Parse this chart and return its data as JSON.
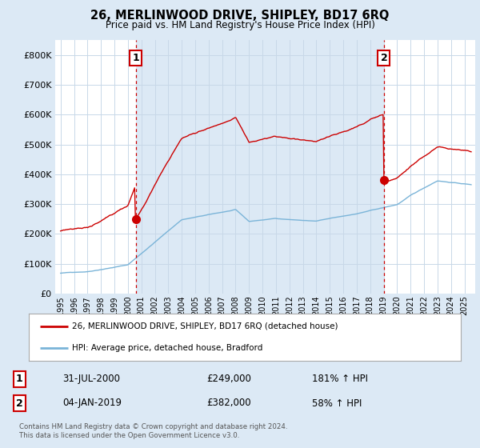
{
  "title": "26, MERLINWOOD DRIVE, SHIPLEY, BD17 6RQ",
  "subtitle": "Price paid vs. HM Land Registry's House Price Index (HPI)",
  "legend_line1": "26, MERLINWOOD DRIVE, SHIPLEY, BD17 6RQ (detached house)",
  "legend_line2": "HPI: Average price, detached house, Bradford",
  "sale1_date": "31-JUL-2000",
  "sale1_price": 249000,
  "sale1_hpi": "181% ↑ HPI",
  "sale2_date": "04-JAN-2019",
  "sale2_price": 382000,
  "sale2_hpi": "58% ↑ HPI",
  "footnote": "Contains HM Land Registry data © Crown copyright and database right 2024.\nThis data is licensed under the Open Government Licence v3.0.",
  "hpi_color": "#7ab4d8",
  "price_color": "#cc0000",
  "vline_color": "#cc0000",
  "bg_color": "#dce9f5",
  "plot_bg": "#ffffff",
  "fill_color": "#dce9f5",
  "grid_color": "#c8d8e8",
  "ylim": [
    0,
    850000
  ],
  "yticks": [
    0,
    100000,
    200000,
    300000,
    400000,
    500000,
    600000,
    700000,
    800000
  ],
  "sale1_year": 2000.58,
  "sale2_year": 2019.02
}
